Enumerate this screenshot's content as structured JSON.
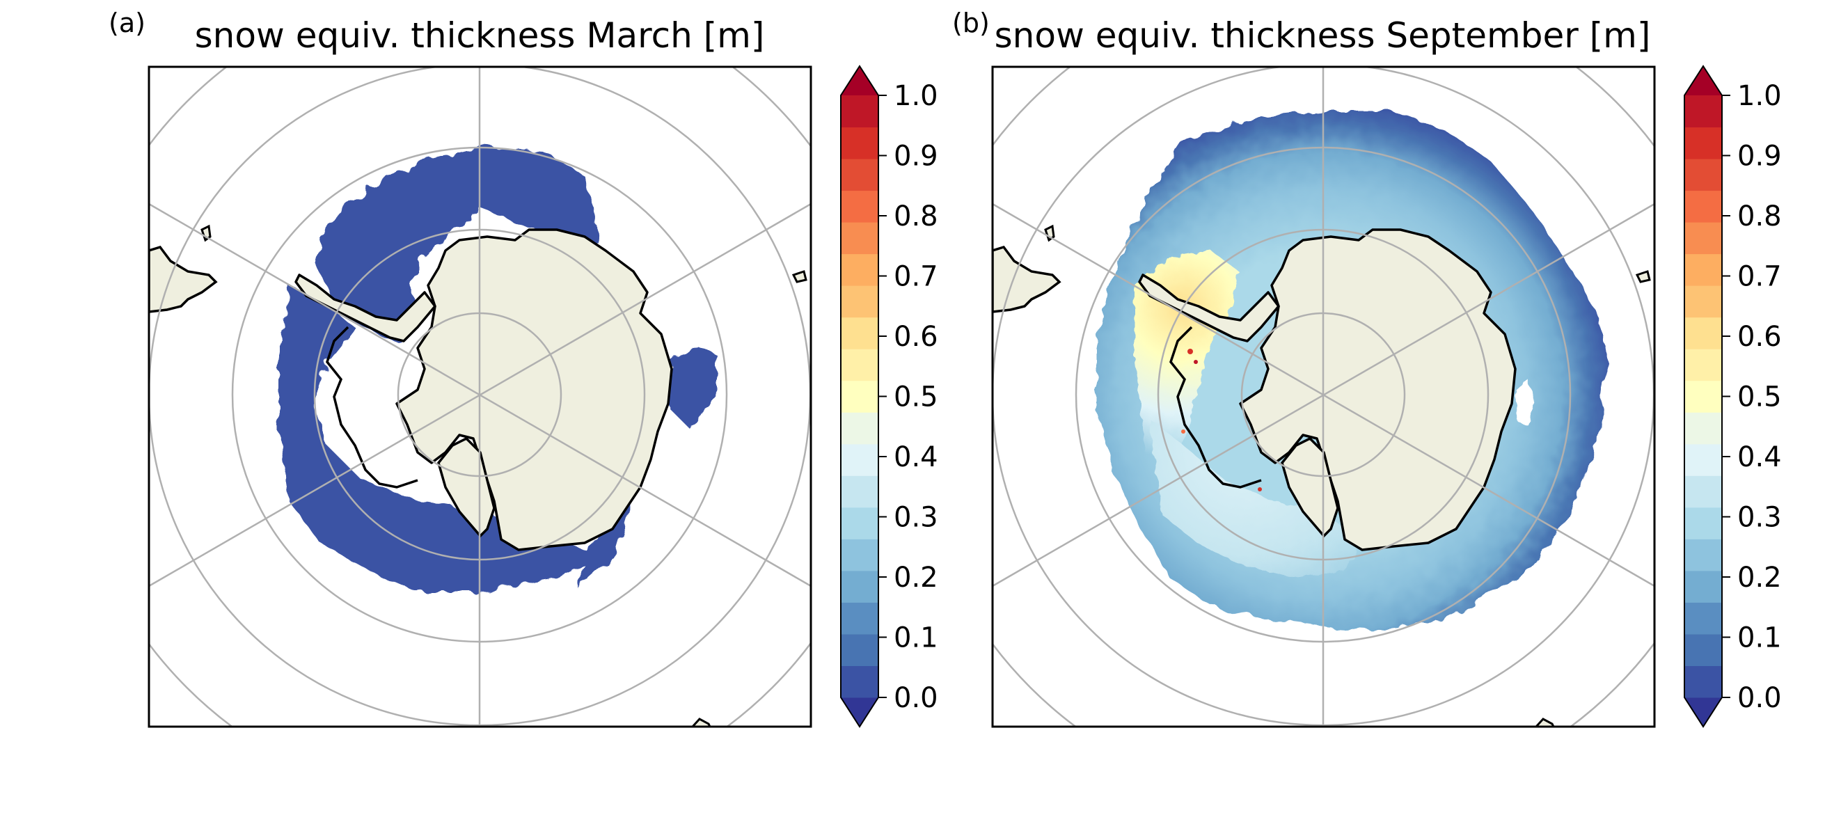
{
  "panels": [
    {
      "letter": "(a)",
      "title": "snow equiv. thickness March [m]"
    },
    {
      "letter": "(b)",
      "title": "snow equiv. thickness September [m]"
    }
  ],
  "colorbar": {
    "min": 0.0,
    "max": 1.0,
    "step": 0.05,
    "extend": "both",
    "ticks": [
      "0.0",
      "0.1",
      "0.2",
      "0.3",
      "0.4",
      "0.5",
      "0.6",
      "0.7",
      "0.8",
      "0.9",
      "1.0"
    ],
    "colors": [
      "#313695",
      "#3b53a4",
      "#4874b2",
      "#5a8ec1",
      "#74add1",
      "#8ec3de",
      "#abd9e9",
      "#c6e6f0",
      "#e0f3f8",
      "#ecf7e6",
      "#ffffbf",
      "#fff0a8",
      "#fee090",
      "#fdc374",
      "#fdae61",
      "#f88d51",
      "#f46d43",
      "#e34d34",
      "#d73027",
      "#bf1727",
      "#a50026"
    ]
  },
  "map": {
    "projection": "south-polar-stereographic",
    "land_color": "#efefdf",
    "coast_color": "#000000",
    "grid_color": "#b0b0b0"
  }
}
